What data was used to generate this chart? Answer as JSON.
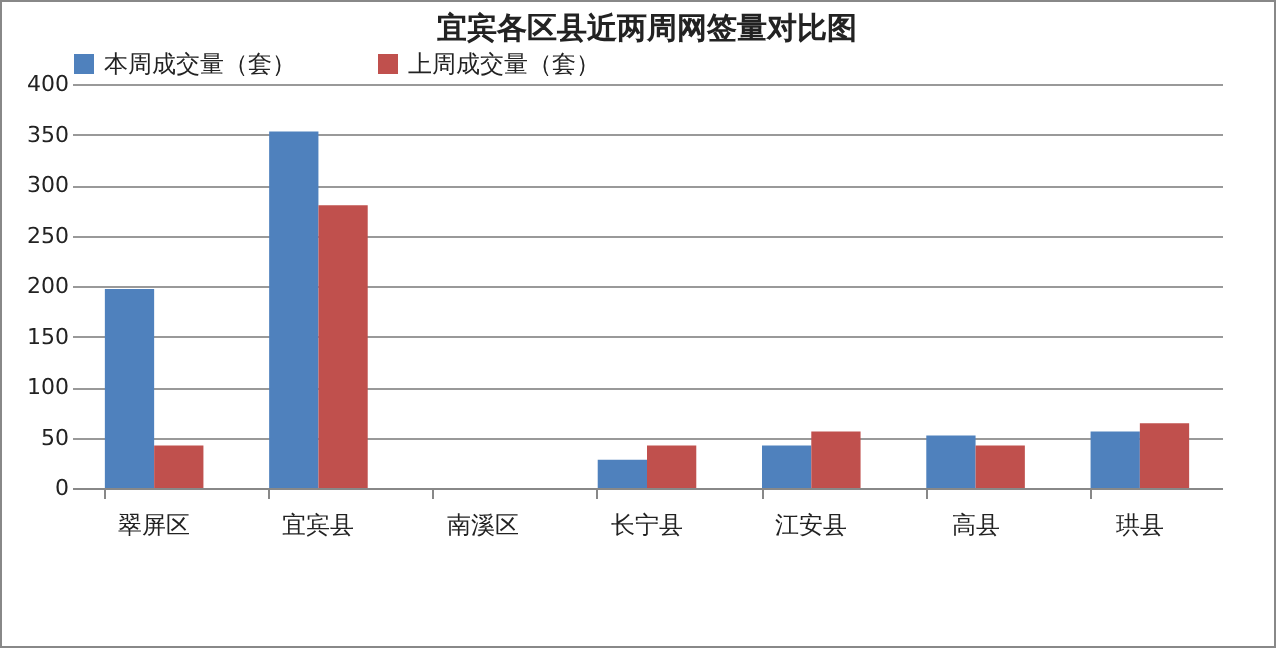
{
  "chart_data": {
    "type": "bar",
    "title": "宜宾各区县近两周网签量对比图",
    "categories": [
      "翠屏区",
      "宜宾县",
      "南溪区",
      "长宁县",
      "江安县",
      "高县",
      "珙县"
    ],
    "series": [
      {
        "name": "本周成交量（套）",
        "color": "#4f81bd",
        "values": [
          197,
          353,
          0,
          28,
          42,
          52,
          56
        ]
      },
      {
        "name": "上周成交量（套）",
        "color": "#c0504d",
        "values": [
          42,
          280,
          0,
          42,
          56,
          42,
          64
        ]
      }
    ],
    "ylim": [
      0,
      400
    ],
    "yticks": [
      0,
      50,
      100,
      150,
      200,
      250,
      300,
      350,
      400
    ],
    "grid": "y",
    "legend": "top"
  }
}
